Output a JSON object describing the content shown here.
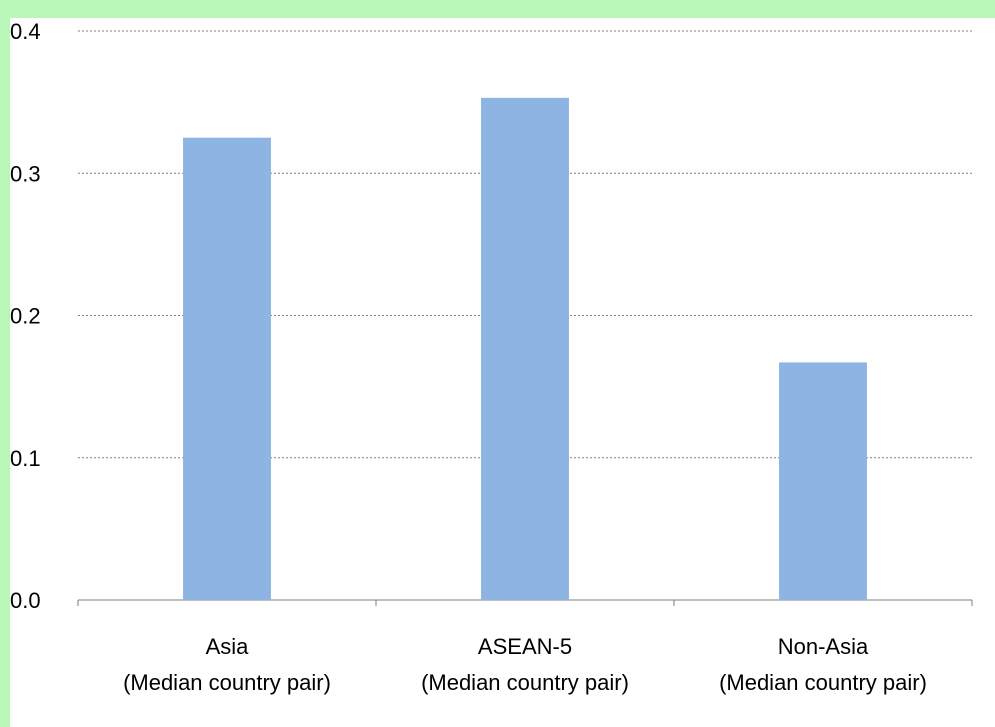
{
  "chart_data": {
    "type": "bar",
    "categories": [
      [
        "Asia",
        "(Median country pair)"
      ],
      [
        "ASEAN-5",
        "(Median country pair)"
      ],
      [
        "Non-Asia",
        "(Median country pair)"
      ]
    ],
    "values": [
      0.325,
      0.353,
      0.167
    ],
    "ylim": [
      0,
      0.4
    ],
    "yticks": [
      "0.0",
      "0.1",
      "0.2",
      "0.3",
      "0.4"
    ],
    "grid": true,
    "gridStyle": "dashed",
    "barColor": "#8eb4e3",
    "frameColor": "#b9f7b9"
  }
}
